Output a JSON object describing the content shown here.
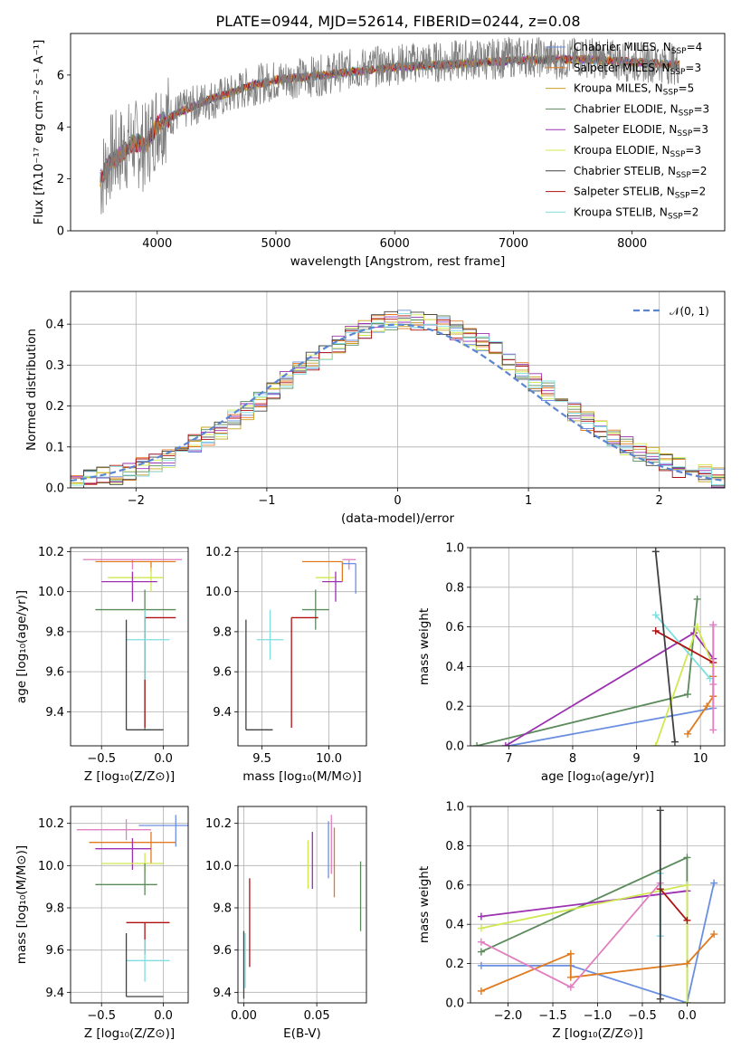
{
  "figure": {
    "title": "PLATE=0944, MJD=52614, FIBERID=0244, z=0.08"
  },
  "chart_data": [
    {
      "id": "spectrum",
      "type": "line",
      "xlabel": "wavelength [Angstrom, rest frame]",
      "ylabel": "Flux [fλ10⁻¹⁷ erg cm⁻² s⁻¹ A⁻¹]",
      "xlim": [
        3270,
        8780
      ],
      "ylim": [
        0,
        7.6
      ],
      "xticks": [
        "4000",
        "5000",
        "6000",
        "7000",
        "8000"
      ],
      "yticks": [
        "0",
        "2",
        "4",
        "6"
      ],
      "legend_position": "top-right",
      "data_color": "#808080",
      "data_series": {
        "x": [
          3520,
          3600,
          3700,
          3800,
          3900,
          4000,
          4200,
          4400,
          4600,
          4800,
          5000,
          5200,
          5400,
          5600,
          5800,
          6000,
          6200,
          6400,
          6600,
          6800,
          7000,
          7200,
          7400,
          7600,
          7800,
          8000,
          8200,
          8400
        ],
        "y": [
          1.9,
          2.8,
          3.1,
          3.4,
          3.2,
          4.2,
          4.6,
          5.0,
          5.2,
          5.6,
          5.8,
          5.9,
          6.0,
          6.2,
          6.3,
          6.4,
          6.5,
          6.5,
          6.6,
          6.6,
          6.7,
          6.7,
          6.6,
          6.7,
          6.6,
          6.5,
          6.5,
          6.4
        ]
      },
      "series": [
        {
          "name": "Chabrier MILES, N$_{SSP}$=4",
          "label": "Chabrier MILES, N",
          "n": "4",
          "color": "#6a8fe0"
        },
        {
          "name": "Salpeter MILES, N$_{SSP}$=3",
          "label": "Salpeter MILES, N",
          "n": "3",
          "color": "#e07b20"
        },
        {
          "name": "Kroupa MILES, N$_{SSP}$=5",
          "label": "Kroupa MILES, N",
          "n": "5",
          "color": "#c8a020"
        },
        {
          "name": "Chabrier ELODIE, N$_{SSP}$=3",
          "label": "Chabrier ELODIE, N",
          "n": "3",
          "color": "#5b8a5b"
        },
        {
          "name": "Salpeter ELODIE, N$_{SSP}$=3",
          "label": "Salpeter ELODIE, N",
          "n": "3",
          "color": "#9b30b0"
        },
        {
          "name": "Kroupa ELODIE, N$_{SSP}$=3",
          "label": "Kroupa ELODIE, N",
          "n": "3",
          "color": "#d0e850"
        },
        {
          "name": "Chabrier STELIB, N$_{SSP}$=2",
          "label": "Chabrier STELIB, N",
          "n": "2",
          "color": "#404040"
        },
        {
          "name": "Salpeter STELIB, N$_{SSP}$=2",
          "label": "Salpeter STELIB, N",
          "n": "2",
          "color": "#b01010"
        },
        {
          "name": "Kroupa STELIB, N$_{SSP}$=2",
          "label": "Kroupa STELIB, N",
          "n": "2",
          "color": "#80dde0"
        }
      ],
      "model_curve": {
        "x": [
          3520,
          3600,
          3700,
          3800,
          3900,
          4000,
          4200,
          4400,
          4600,
          4800,
          5000,
          5200,
          5400,
          5600,
          5800,
          6000,
          6200,
          6400,
          6600,
          6800,
          7000,
          7200,
          7400,
          7600,
          7800,
          8000,
          8200,
          8400
        ],
        "y": [
          2.0,
          2.6,
          3.0,
          3.4,
          3.3,
          4.1,
          4.6,
          5.0,
          5.3,
          5.6,
          5.8,
          5.9,
          6.0,
          6.1,
          6.2,
          6.3,
          6.35,
          6.4,
          6.45,
          6.5,
          6.55,
          6.6,
          6.6,
          6.6,
          6.55,
          6.5,
          6.45,
          6.4
        ]
      }
    },
    {
      "id": "residuals",
      "type": "histogram",
      "xlabel": "(data-model)/error",
      "ylabel": "Normed distribution",
      "xlim": [
        -2.5,
        2.5
      ],
      "ylim": [
        0,
        0.48
      ],
      "xticks": [
        "−2",
        "−1",
        "0",
        "1",
        "2"
      ],
      "yticks": [
        "0.0",
        "0.1",
        "0.2",
        "0.3",
        "0.4"
      ],
      "grid": true,
      "legend_position": "top-right",
      "reference_curve": {
        "name": "N(0,1)",
        "label": "𝒩(0, 1)",
        "color": "#5b85d0"
      }
    },
    {
      "id": "age-vs-Z",
      "type": "errorbar",
      "xlabel": "Z [log₁₀(Z/Z⊙)]",
      "ylabel": "age  [log₁₀(age/yr)]",
      "xlim": [
        -0.75,
        0.2
      ],
      "ylim": [
        9.23,
        10.22
      ],
      "xticks": [
        "−0.5",
        "0.0"
      ],
      "yticks": [
        "9.4",
        "9.6",
        "9.8",
        "10.0",
        "10.2"
      ],
      "points": [
        {
          "x": -0.25,
          "xerr": [
            0.4,
            0.4
          ],
          "y": 10.16,
          "yerr": [
            0.05,
            0.0
          ],
          "color": "#e080c0"
        },
        {
          "x": -0.1,
          "xerr": [
            0.45,
            0.2
          ],
          "y": 10.15,
          "yerr": [
            0.05,
            0.0
          ],
          "color": "#e07b20"
        },
        {
          "x": -0.1,
          "xerr": [
            0.35,
            0.1
          ],
          "y": 10.07,
          "yerr": [
            0.07,
            0.05
          ],
          "color": "#d0e850"
        },
        {
          "x": -0.25,
          "xerr": [
            0.25,
            0.2
          ],
          "y": 10.05,
          "yerr": [
            0.1,
            0.05
          ],
          "color": "#9b30b0"
        },
        {
          "x": -0.15,
          "xerr": [
            0.4,
            0.25
          ],
          "y": 9.91,
          "yerr": [
            0.6,
            0.1
          ],
          "color": "#5b8a5b"
        },
        {
          "x": -0.15,
          "xerr": [
            0.0,
            0.25
          ],
          "y": 9.87,
          "yerr": [
            0.55,
            0.0
          ],
          "color": "#b01010"
        },
        {
          "x": -0.15,
          "xerr": [
            0.15,
            0.2
          ],
          "y": 9.76,
          "yerr": [
            0.2,
            0.15
          ],
          "color": "#80dde0"
        },
        {
          "x": -0.3,
          "xerr": [
            0.0,
            0.3
          ],
          "y": 9.31,
          "yerr": [
            0.0,
            0.55
          ],
          "color": "#404040"
        }
      ]
    },
    {
      "id": "age-vs-mass",
      "type": "errorbar",
      "xlabel": "mass [log₁₀(M/M⊙)]",
      "ylabel": "",
      "xlim": [
        9.32,
        10.28
      ],
      "ylim": [
        9.23,
        10.22
      ],
      "xticks": [
        "9.5",
        "10.0"
      ],
      "yticks": [
        "9.4",
        "9.6",
        "9.8",
        "10.0",
        "10.2"
      ],
      "points": [
        {
          "x": 10.15,
          "xerr": [
            0.05,
            0.05
          ],
          "y": 10.16,
          "yerr": [
            0.05,
            0.0
          ],
          "color": "#e080c0"
        },
        {
          "x": 10.1,
          "xerr": [
            0.3,
            0.0
          ],
          "y": 10.15,
          "yerr": [
            0.1,
            0.0
          ],
          "color": "#e07b20"
        },
        {
          "x": 10.2,
          "xerr": [
            0.1,
            0.0
          ],
          "y": 10.14,
          "yerr": [
            0.15,
            0.0
          ],
          "color": "#6a8fe0"
        },
        {
          "x": 10.0,
          "xerr": [
            0.1,
            0.05
          ],
          "y": 10.07,
          "yerr": [
            0.05,
            0.05
          ],
          "color": "#d0e850"
        },
        {
          "x": 10.05,
          "xerr": [
            0.1,
            0.05
          ],
          "y": 10.05,
          "yerr": [
            0.1,
            0.05
          ],
          "color": "#9b30b0"
        },
        {
          "x": 9.9,
          "xerr": [
            0.1,
            0.1
          ],
          "y": 9.91,
          "yerr": [
            0.1,
            0.1
          ],
          "color": "#5b8a5b"
        },
        {
          "x": 9.72,
          "xerr": [
            0.0,
            0.2
          ],
          "y": 9.87,
          "yerr": [
            0.55,
            0.0
          ],
          "color": "#b01010"
        },
        {
          "x": 9.56,
          "xerr": [
            0.1,
            0.1
          ],
          "y": 9.76,
          "yerr": [
            0.1,
            0.15
          ],
          "color": "#80dde0"
        },
        {
          "x": 9.38,
          "xerr": [
            0.0,
            0.2
          ],
          "y": 9.31,
          "yerr": [
            0.0,
            0.55
          ],
          "color": "#404040"
        }
      ]
    },
    {
      "id": "massweight-vs-age",
      "type": "line",
      "xlabel": "age  [log₁₀(age/yr)]",
      "ylabel": "mass weight",
      "xlim": [
        6.4,
        10.38
      ],
      "ylim": [
        0,
        1
      ],
      "xticks": [
        "7",
        "8",
        "9",
        "10"
      ],
      "yticks": [
        "0.0",
        "0.2",
        "0.4",
        "0.6",
        "0.8",
        "1.0"
      ],
      "grid": true,
      "series": [
        {
          "color": "#6a8fe0",
          "x": [
            7.0,
            10.2,
            10.2
          ],
          "y": [
            0.0,
            0.19,
            0.61
          ]
        },
        {
          "color": "#5b8a5b",
          "x": [
            6.5,
            9.8,
            9.95
          ],
          "y": [
            0.0,
            0.26,
            0.74
          ]
        },
        {
          "color": "#9b30b0",
          "x": [
            6.95,
            9.9,
            10.2
          ],
          "y": [
            0.0,
            0.57,
            0.44
          ]
        },
        {
          "color": "#d0e850",
          "x": [
            9.3,
            9.95,
            10.2
          ],
          "y": [
            0.0,
            0.6,
            0.4
          ]
        },
        {
          "color": "#80dde0",
          "x": [
            9.3,
            10.15
          ],
          "y": [
            0.66,
            0.34
          ]
        },
        {
          "color": "#b01010",
          "x": [
            9.3,
            10.2
          ],
          "y": [
            0.58,
            0.42
          ]
        },
        {
          "color": "#404040",
          "x": [
            9.3,
            9.6
          ],
          "y": [
            0.98,
            0.02
          ]
        },
        {
          "color": "#e07b20",
          "x": [
            9.8,
            10.1,
            10.2,
            10.2
          ],
          "y": [
            0.06,
            0.2,
            0.25,
            0.35
          ]
        },
        {
          "color": "#e080c0",
          "x": [
            10.2,
            10.2,
            10.2
          ],
          "y": [
            0.08,
            0.31,
            0.61
          ]
        }
      ]
    },
    {
      "id": "mass-vs-Z",
      "type": "errorbar",
      "xlabel": "Z [log₁₀(Z/Z⊙)]",
      "ylabel": "mass [log₁₀(M/M⊙)]",
      "xlim": [
        -0.75,
        0.2
      ],
      "ylim": [
        9.35,
        10.28
      ],
      "xticks": [
        "−0.5",
        "0.0"
      ],
      "yticks": [
        "9.4",
        "9.6",
        "9.8",
        "10.0",
        "10.2"
      ],
      "points": [
        {
          "x": 0.1,
          "xerr": [
            0.3,
            0.1
          ],
          "y": 10.19,
          "yerr": [
            0.1,
            0.05
          ],
          "color": "#6a8fe0"
        },
        {
          "x": -0.3,
          "xerr": [
            0.4,
            0.2
          ],
          "y": 10.17,
          "yerr": [
            0.05,
            0.05
          ],
          "color": "#e080c0"
        },
        {
          "x": -0.1,
          "xerr": [
            0.5,
            0.2
          ],
          "y": 10.11,
          "yerr": [
            0.1,
            0.05
          ],
          "color": "#e07b20"
        },
        {
          "x": -0.25,
          "xerr": [
            0.3,
            0.15
          ],
          "y": 10.08,
          "yerr": [
            0.1,
            0.05
          ],
          "color": "#9b30b0"
        },
        {
          "x": -0.15,
          "xerr": [
            0.35,
            0.15
          ],
          "y": 10.01,
          "yerr": [
            0.05,
            0.05
          ],
          "color": "#d0e850"
        },
        {
          "x": -0.15,
          "xerr": [
            0.4,
            0.1
          ],
          "y": 9.91,
          "yerr": [
            0.05,
            0.1
          ],
          "color": "#5b8a5b"
        },
        {
          "x": -0.15,
          "xerr": [
            0.15,
            0.2
          ],
          "y": 9.73,
          "yerr": [
            0.15,
            0.0
          ],
          "color": "#b01010"
        },
        {
          "x": -0.15,
          "xerr": [
            0.15,
            0.2
          ],
          "y": 9.55,
          "yerr": [
            0.1,
            0.1
          ],
          "color": "#80dde0"
        },
        {
          "x": -0.3,
          "xerr": [
            0.0,
            0.3
          ],
          "y": 9.38,
          "yerr": [
            0.0,
            0.3
          ],
          "color": "#404040"
        }
      ]
    },
    {
      "id": "mass-vs-ebv",
      "type": "errorbar",
      "xlabel": "E(B-V)",
      "ylabel": "",
      "xlim": [
        -0.004,
        0.084
      ],
      "ylim": [
        9.35,
        10.28
      ],
      "xticks": [
        "0.00",
        "0.05"
      ],
      "yticks": [
        "9.4",
        "9.6",
        "9.8",
        "10.0",
        "10.2"
      ],
      "points": [
        {
          "x": 0.08,
          "yerr_span": [
            9.69,
            10.02
          ],
          "color": "#5b8a5b"
        },
        {
          "x": 0.062,
          "yerr_span": [
            9.85,
            10.18
          ],
          "color": "#e07b20"
        },
        {
          "x": 0.06,
          "yerr_span": [
            9.96,
            10.24
          ],
          "color": "#e080c0"
        },
        {
          "x": 0.058,
          "yerr_span": [
            9.94,
            10.21
          ],
          "color": "#6a8fe0"
        },
        {
          "x": 0.047,
          "yerr_span": [
            9.89,
            10.16
          ],
          "color": "#9b30b0"
        },
        {
          "x": 0.044,
          "yerr_span": [
            9.89,
            10.12
          ],
          "color": "#d0e850"
        },
        {
          "x": 0.004,
          "yerr_span": [
            9.52,
            9.94
          ],
          "color": "#b01010"
        },
        {
          "x": 0.001,
          "yerr_span": [
            9.42,
            9.68
          ],
          "color": "#80dde0"
        },
        {
          "x": 0.0,
          "yerr_span": [
            9.37,
            9.69
          ],
          "color": "#404040"
        }
      ]
    },
    {
      "id": "massweight-vs-Z",
      "type": "line",
      "xlabel": "Z [log₁₀(Z/Z⊙)]",
      "ylabel": "mass weight",
      "xlim": [
        -2.42,
        0.42
      ],
      "ylim": [
        0,
        1
      ],
      "xticks": [
        "−2.0",
        "−1.5",
        "−1.0",
        "−0.5",
        "0.0"
      ],
      "yticks": [
        "0.0",
        "0.2",
        "0.4",
        "0.6",
        "0.8",
        "1.0"
      ],
      "grid": true,
      "series": [
        {
          "color": "#6a8fe0",
          "x": [
            -2.3,
            -1.3,
            0.0,
            0.3
          ],
          "y": [
            0.19,
            0.19,
            0.0,
            0.61
          ]
        },
        {
          "color": "#5b8a5b",
          "x": [
            -2.3,
            0.0,
            0.0
          ],
          "y": [
            0.26,
            0.74,
            0.0
          ]
        },
        {
          "color": "#9b30b0",
          "x": [
            -2.3,
            0.0
          ],
          "y": [
            0.44,
            0.57
          ]
        },
        {
          "color": "#d0e850",
          "x": [
            -2.3,
            0.0,
            0.0
          ],
          "y": [
            0.38,
            0.6,
            0.0
          ]
        },
        {
          "color": "#e07b20",
          "x": [
            -2.3,
            -1.3,
            -1.3,
            0.0,
            0.3
          ],
          "y": [
            0.06,
            0.25,
            0.13,
            0.2,
            0.35
          ]
        },
        {
          "color": "#e080c0",
          "x": [
            -2.3,
            -1.3,
            -0.3
          ],
          "y": [
            0.31,
            0.08,
            0.61
          ]
        },
        {
          "color": "#80dde0",
          "x": [
            -0.3,
            -0.3
          ],
          "y": [
            0.66,
            0.34
          ]
        },
        {
          "color": "#b01010",
          "x": [
            -0.3,
            0.0
          ],
          "y": [
            0.58,
            0.42
          ]
        },
        {
          "color": "#404040",
          "x": [
            -0.3,
            -0.3
          ],
          "y": [
            0.98,
            0.02
          ]
        }
      ]
    }
  ]
}
